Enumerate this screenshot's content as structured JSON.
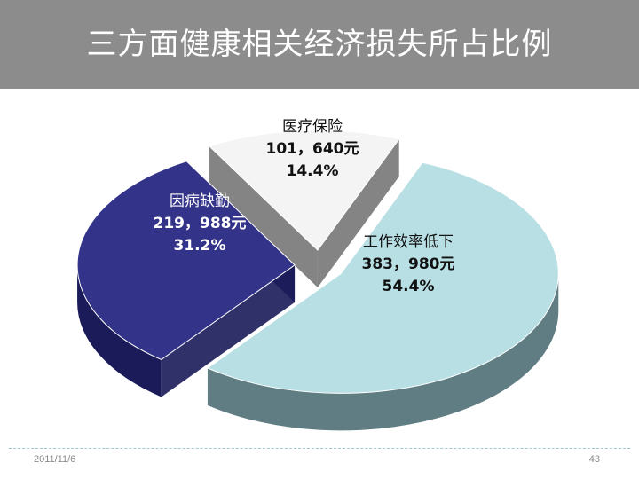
{
  "slide": {
    "title": "三方面健康相关经济损失所占比例",
    "date": "2011/11/6",
    "page_number": "43"
  },
  "chart_data": {
    "type": "pie",
    "title": "三方面健康相关经济损失所占比例",
    "unit": "元",
    "slices": [
      {
        "name": "工作效率低下",
        "value_label": "383，980元",
        "value": 383980,
        "percent": 54.4,
        "percent_label": "54.4%",
        "color": "#b8dfe4",
        "side_color": "#5f7d82"
      },
      {
        "name": "因病缺勤",
        "value_label": "219，988元",
        "value": 219988,
        "percent": 31.2,
        "percent_label": "31.2%",
        "color": "#33338a",
        "side_color": "#1b1b5a"
      },
      {
        "name": "医疗保险",
        "value_label": "101，640元",
        "value": 101640,
        "percent": 14.4,
        "percent_label": "14.4%",
        "color": "#f4f4f4",
        "side_color": "#777777"
      }
    ]
  }
}
